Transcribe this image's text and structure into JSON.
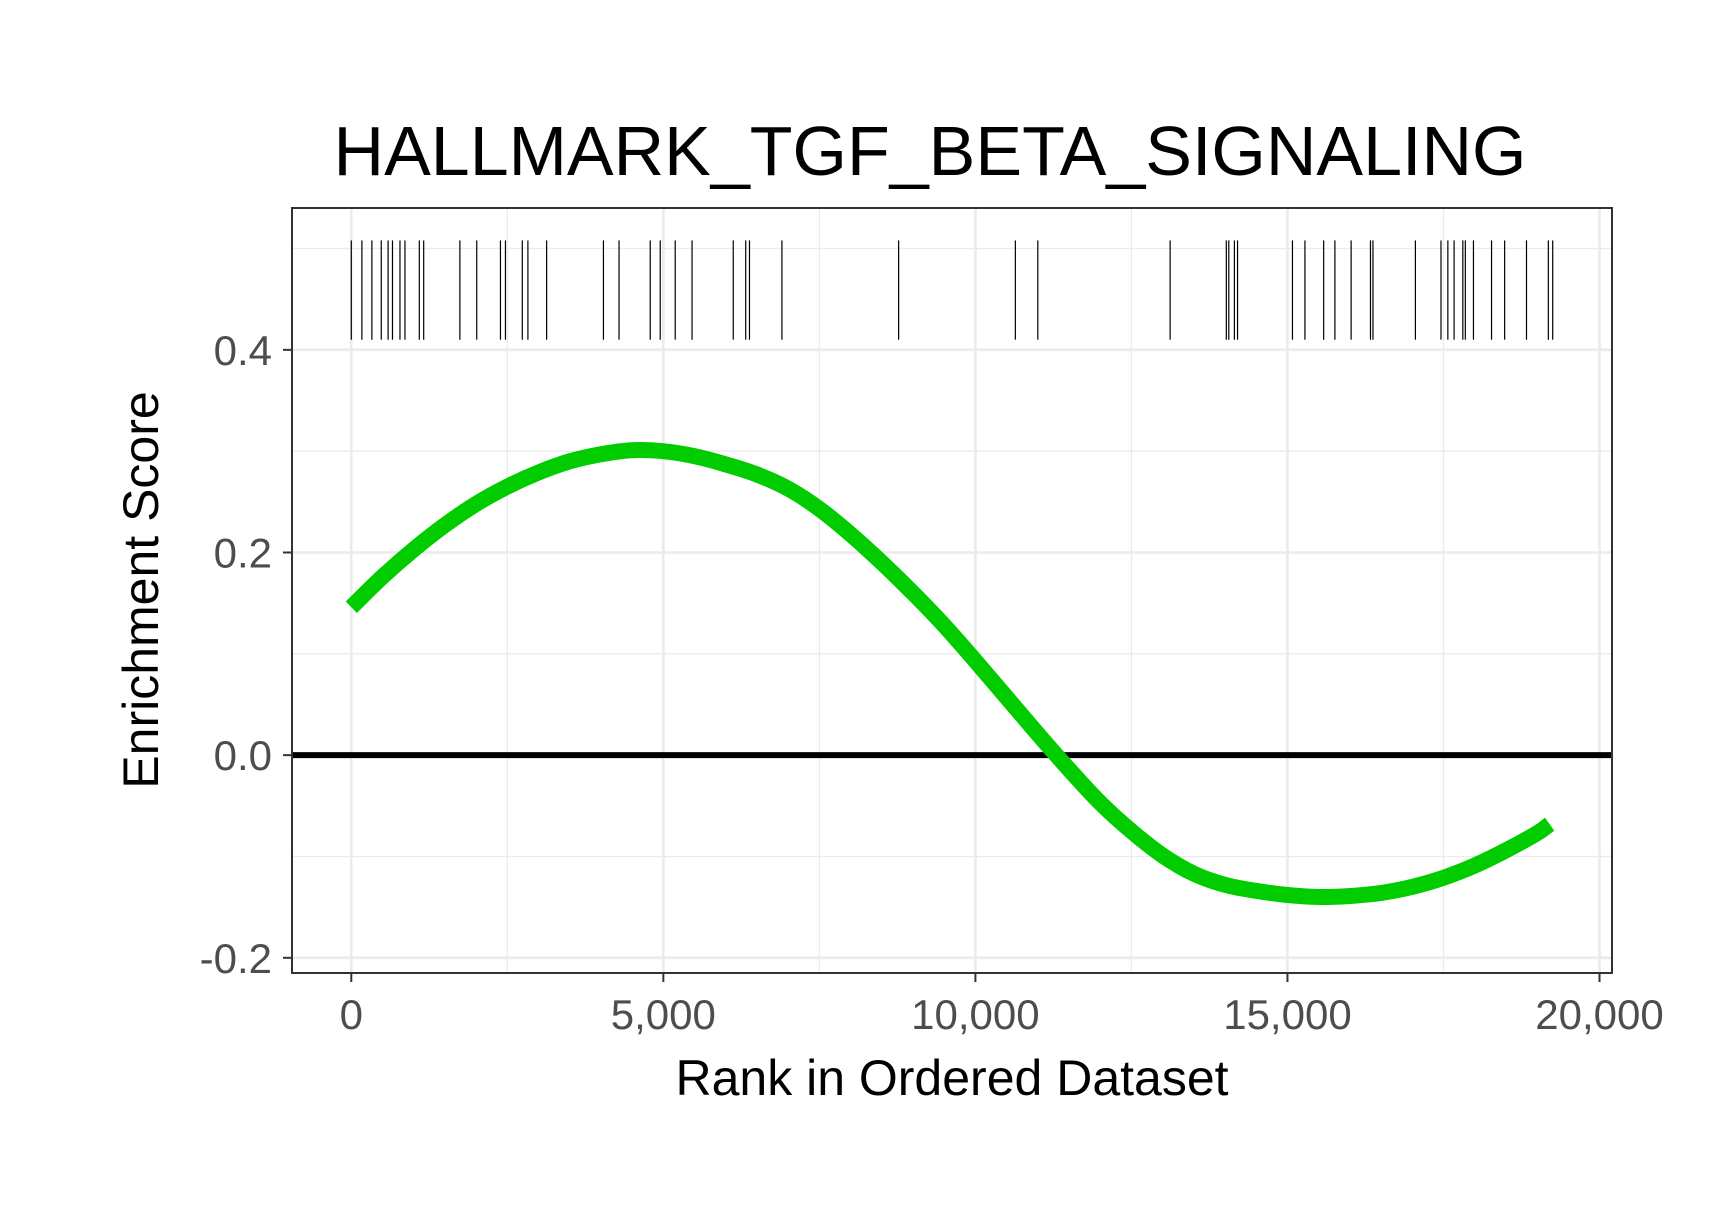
{
  "chart_data": {
    "type": "line",
    "title": "HALLMARK_TGF_BETA_SIGNALING",
    "xlabel": "Rank in Ordered Dataset",
    "ylabel": "Enrichment Score",
    "xlim": [
      -950,
      20200
    ],
    "ylim": [
      -0.215,
      0.54
    ],
    "x_ticks": [
      0,
      5000,
      10000,
      15000,
      20000
    ],
    "x_tick_labels": [
      "0",
      "5,000",
      "10,000",
      "15,000",
      "20,000"
    ],
    "y_ticks": [
      -0.2,
      0.0,
      0.2,
      0.4
    ],
    "y_tick_labels": [
      "-0.2",
      "0.0",
      "0.2",
      "0.4"
    ],
    "grid": true,
    "zero_line": 0,
    "series": [
      {
        "color": "#00CC00",
        "x": [
          0,
          500,
          1000,
          1500,
          2000,
          2500,
          3000,
          3500,
          4000,
          4500,
          5000,
          5500,
          6000,
          6500,
          7000,
          7500,
          8000,
          8500,
          9000,
          9500,
          10000,
          10500,
          11000,
          11500,
          12000,
          12500,
          13000,
          13500,
          14000,
          14500,
          15000,
          15500,
          16000,
          16500,
          17000,
          17500,
          18000,
          18500,
          19000,
          19200
        ],
        "values": [
          0.146,
          0.176,
          0.203,
          0.227,
          0.248,
          0.265,
          0.279,
          0.29,
          0.297,
          0.301,
          0.3,
          0.295,
          0.287,
          0.277,
          0.263,
          0.243,
          0.218,
          0.19,
          0.16,
          0.128,
          0.093,
          0.057,
          0.021,
          -0.014,
          -0.047,
          -0.075,
          -0.099,
          -0.117,
          -0.128,
          -0.134,
          -0.138,
          -0.14,
          -0.139,
          -0.136,
          -0.13,
          -0.121,
          -0.109,
          -0.094,
          -0.077,
          -0.068
        ]
      }
    ],
    "rug_y_range": [
      0.41,
      0.508
    ],
    "gene_hits": [
      0,
      170,
      330,
      480,
      590,
      660,
      780,
      860,
      1090,
      1160,
      1740,
      2010,
      2390,
      2470,
      2740,
      2830,
      3130,
      4040,
      4290,
      4790,
      4950,
      5190,
      5460,
      6120,
      6320,
      6380,
      6900,
      8770,
      10640,
      11000,
      13120,
      14020,
      14060,
      14150,
      14200,
      15080,
      15280,
      15580,
      15760,
      16020,
      16330,
      16370,
      17050,
      17460,
      17570,
      17670,
      17810,
      17850,
      17980,
      18270,
      18480,
      18830,
      19180,
      19250
    ]
  }
}
